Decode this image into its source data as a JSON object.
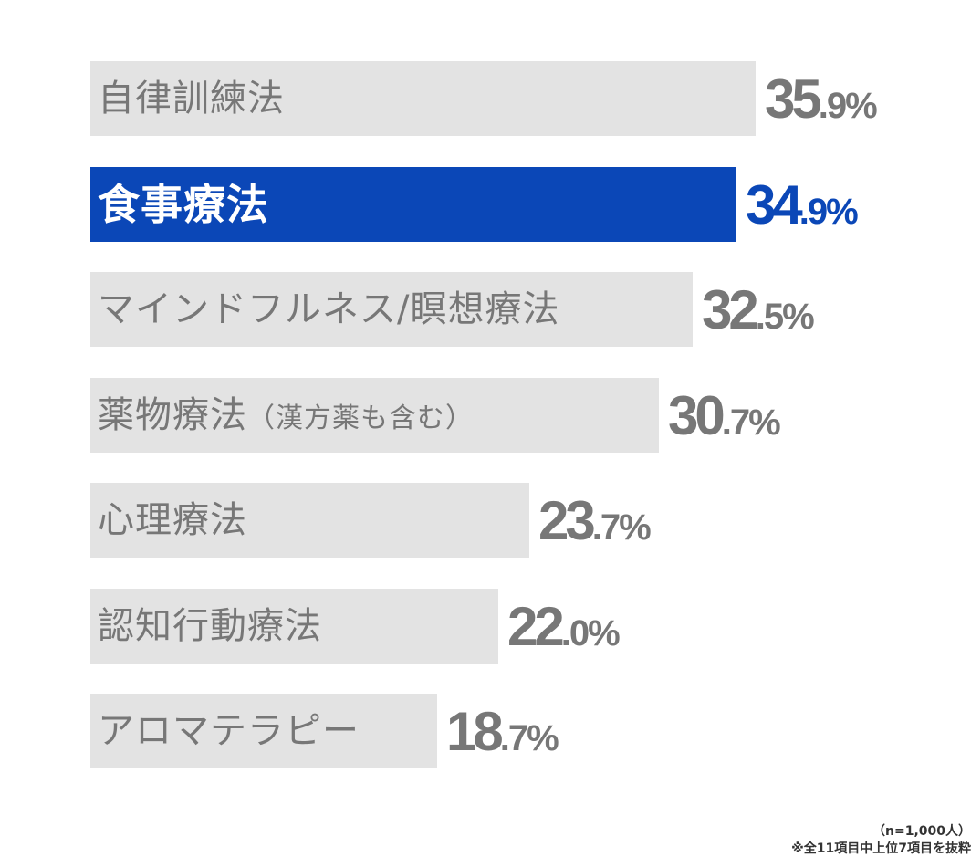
{
  "chart_data": {
    "type": "bar",
    "orientation": "horizontal",
    "categories": [
      "自律訓練法",
      "食事療法",
      "マインドフルネス/瞑想療法",
      "薬物療法",
      "心理療法",
      "認知行動療法",
      "アロマテラピー"
    ],
    "category_notes": [
      "",
      "",
      "",
      "（漢方薬も含む）",
      "",
      "",
      ""
    ],
    "values": [
      35.9,
      34.9,
      32.5,
      30.7,
      23.7,
      22.0,
      18.7
    ],
    "value_labels": [
      [
        "35",
        ".9%"
      ],
      [
        "34",
        ".9%"
      ],
      [
        "32",
        ".5%"
      ],
      [
        "30",
        ".7%"
      ],
      [
        "23",
        ".7%"
      ],
      [
        "22",
        ".0%"
      ],
      [
        "18",
        ".7%"
      ]
    ],
    "highlight_index": 1,
    "unit": "%",
    "title": "",
    "xlabel": "",
    "ylabel": "",
    "colors": {
      "bar": "#e3e3e3",
      "highlight_bar": "#0b47b7",
      "label_text": "#777777",
      "highlight_label_text": "#ffffff",
      "value_text": "#777777",
      "highlight_value_text": "#0b47b7"
    }
  },
  "notes": {
    "sample": "（n=1,000人）",
    "scope": "※全11項目中上位7項目を抜粋"
  }
}
